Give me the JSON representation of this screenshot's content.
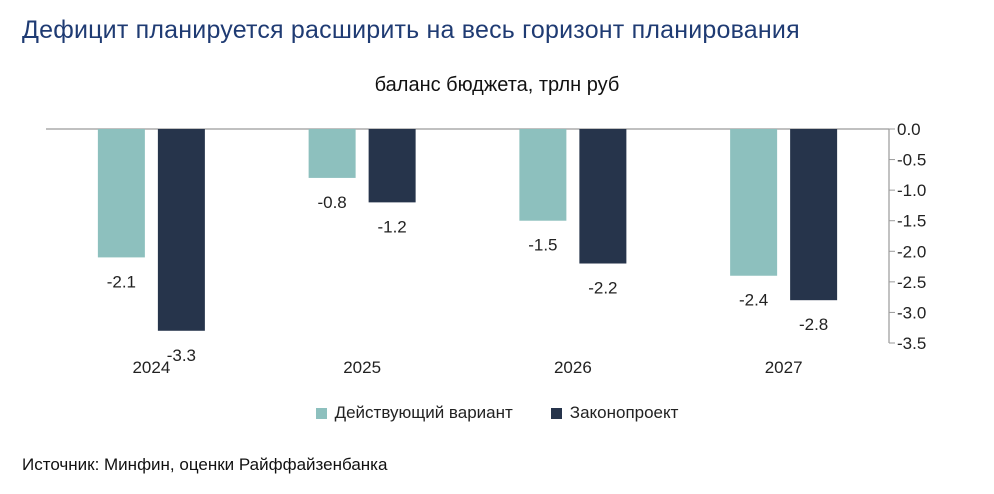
{
  "title": "Дефицит планируется расширить на весь горизонт планирования",
  "source": "Источник: Минфин, оценки Райффайзенбанка",
  "chart_data": {
    "type": "bar",
    "title": "баланс бюджета, трлн руб",
    "categories": [
      "2024",
      "2025",
      "2026",
      "2027"
    ],
    "series": [
      {
        "name": "Действующий вариант",
        "values": [
          -2.1,
          -0.8,
          -1.5,
          -2.4
        ],
        "color": "#8dc0be"
      },
      {
        "name": "Законопроект",
        "values": [
          -3.3,
          -1.2,
          -2.2,
          -2.8
        ],
        "color": "#26344b"
      }
    ],
    "data_labels": [
      [
        "-2.1",
        "-0.8",
        "-1.5",
        "-2.4"
      ],
      [
        "-3.3",
        "-1.2",
        "-2.2",
        "-2.8"
      ]
    ],
    "ylim": [
      -3.5,
      0
    ],
    "yticks": [
      "0.0",
      "-0.5",
      "-1.0",
      "-1.5",
      "-2.0",
      "-2.5",
      "-3.0",
      "-3.5"
    ],
    "yaxis_position": "right",
    "legend_position": "bottom",
    "grid": false
  }
}
